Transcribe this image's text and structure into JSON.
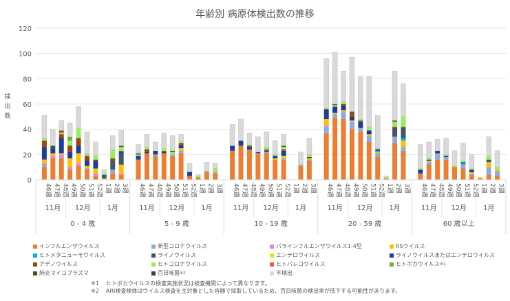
{
  "chart_data": {
    "type": "bar",
    "stacked": true,
    "title": "年齢別 病原体検出数の推移",
    "ylabel": "検出数",
    "ylim": [
      0,
      120
    ],
    "yticks": [
      0,
      20,
      40,
      60,
      80,
      100,
      120
    ],
    "grid": true,
    "legend_position": "bottom",
    "weeks": [
      "46週",
      "47週",
      "48週",
      "49週",
      "50週",
      "51週",
      "52週",
      "1週",
      "2週",
      "3週"
    ],
    "months": [
      {
        "label": "11月",
        "span": 3
      },
      {
        "label": "12月",
        "span": 4
      },
      {
        "label": "1月",
        "span": 3
      }
    ],
    "series": [
      {
        "name": "インフルエンザウイルス",
        "color": "#ED7D31"
      },
      {
        "name": "新型コロナウイルス",
        "color": "#8FAADC"
      },
      {
        "name": "パラインフルエンザウイルス1-4型",
        "color": "#F47FCF"
      },
      {
        "name": "RSウイルス",
        "color": "#FFC000"
      },
      {
        "name": "ヒトメタニューモウイルス",
        "color": "#00B0F0"
      },
      {
        "name": "ライノウイルス",
        "color": "#44546A"
      },
      {
        "name": "エンテロウイルス",
        "color": "#E6E600"
      },
      {
        "name": "ライノウイルスまたはエンテロウイルス",
        "color": "#1F3C9C"
      },
      {
        "name": "アデノウイルス",
        "color": "#9E480E"
      },
      {
        "name": "ヒトコロナウイルス",
        "color": "#92F060"
      },
      {
        "name": "ヒトパレコウイルス",
        "color": "#FF5050"
      },
      {
        "name": "ヒトボカウイルス",
        "color": "#70AD47",
        "note": "※1"
      },
      {
        "name": "肺炎マイコプラズマ",
        "color": "#375623"
      },
      {
        "name": "百日咳菌",
        "color": "#404040",
        "note": "※2"
      },
      {
        "name": "不検出",
        "color": "#D9D9D9"
      }
    ],
    "groups": [
      {
        "label": "0 - 4 歳",
        "values": [
          [
            10,
            2,
            1,
            3,
            0,
            0,
            0,
            10,
            5,
            2,
            0,
            0,
            0,
            0,
            18
          ],
          [
            17,
            0,
            2,
            2,
            0,
            0,
            0,
            4,
            0,
            0,
            0,
            0,
            2,
            0,
            13
          ],
          [
            17,
            1,
            2,
            1,
            0,
            0,
            0,
            12,
            3,
            1,
            1,
            0,
            1,
            0,
            8
          ],
          [
            8,
            1,
            1,
            7,
            0,
            0,
            0,
            5,
            5,
            4,
            0,
            3,
            0,
            0,
            11
          ],
          [
            11,
            0,
            2,
            8,
            0,
            0,
            0,
            6,
            6,
            8,
            0,
            0,
            0,
            0,
            17
          ],
          [
            8,
            1,
            0,
            2,
            0,
            0,
            0,
            4,
            4,
            2,
            0,
            0,
            0,
            0,
            17
          ],
          [
            3,
            0,
            2,
            4,
            0,
            0,
            0,
            6,
            1,
            3,
            0,
            0,
            0,
            0,
            11
          ],
          [
            0,
            0,
            0,
            1,
            0,
            3,
            0,
            0,
            0,
            1,
            0,
            0,
            0,
            0,
            3
          ],
          [
            5,
            3,
            0,
            0,
            0,
            7,
            0,
            0,
            2,
            7,
            0,
            0,
            0,
            0,
            11
          ],
          [
            4,
            0,
            1,
            7,
            0,
            9,
            0,
            1,
            1,
            3,
            0,
            0,
            1,
            0,
            12
          ]
        ]
      },
      {
        "label": "5 - 9 歳",
        "values": [
          [
            16,
            0,
            0,
            0,
            0,
            0,
            0,
            3,
            0,
            1,
            0,
            0,
            1,
            0,
            7
          ],
          [
            21,
            0,
            0,
            0,
            0,
            0,
            0,
            1,
            2,
            2,
            0,
            0,
            0,
            0,
            10
          ],
          [
            19,
            1,
            0,
            0,
            0,
            0,
            0,
            3,
            0,
            0,
            0,
            0,
            0,
            0,
            7
          ],
          [
            21,
            0,
            0,
            0,
            0,
            0,
            0,
            1,
            1,
            2,
            0,
            0,
            0,
            0,
            12
          ],
          [
            19,
            1,
            0,
            0,
            0,
            0,
            0,
            0,
            0,
            2,
            0,
            0,
            1,
            0,
            12
          ],
          [
            21,
            2,
            0,
            2,
            0,
            0,
            0,
            2,
            2,
            1,
            0,
            0,
            0,
            0,
            6
          ],
          [
            3,
            0,
            0,
            0,
            0,
            0,
            0,
            3,
            0,
            1,
            0,
            0,
            0,
            0,
            6
          ],
          [
            2,
            0,
            0,
            0,
            0,
            0,
            0,
            0,
            0,
            1,
            0,
            0,
            0,
            0,
            1
          ],
          [
            6,
            1,
            0,
            0,
            0,
            0,
            0,
            0,
            0,
            0,
            0,
            0,
            0,
            0,
            7
          ],
          [
            5,
            1,
            0,
            1,
            0,
            0,
            0,
            0,
            0,
            2,
            0,
            0,
            0,
            0,
            4
          ]
        ]
      },
      {
        "label": "10 - 19 歳",
        "values": [
          [
            23,
            0,
            0,
            0,
            0,
            0,
            0,
            4,
            0,
            0,
            0,
            0,
            0,
            0,
            17
          ],
          [
            27,
            0,
            0,
            0,
            0,
            0,
            0,
            4,
            0,
            0,
            0,
            0,
            0,
            0,
            17
          ],
          [
            24,
            0,
            0,
            0,
            0,
            0,
            0,
            2,
            1,
            1,
            0,
            0,
            0,
            0,
            9
          ],
          [
            20,
            0,
            1,
            0,
            0,
            0,
            0,
            0,
            0,
            0,
            0,
            0,
            1,
            0,
            12
          ],
          [
            21,
            1,
            0,
            0,
            0,
            0,
            0,
            1,
            1,
            2,
            0,
            0,
            0,
            0,
            12
          ],
          [
            16,
            0,
            0,
            1,
            0,
            0,
            0,
            2,
            0,
            1,
            0,
            0,
            0,
            0,
            11
          ],
          [
            16,
            1,
            0,
            2,
            0,
            0,
            0,
            4,
            1,
            2,
            0,
            0,
            1,
            0,
            9
          ],
          [
            0,
            0,
            0,
            0,
            0,
            0,
            0,
            0,
            0,
            0,
            0,
            0,
            0,
            0,
            0
          ],
          [
            11,
            1,
            0,
            0,
            0,
            0,
            0,
            0,
            0,
            0,
            0,
            0,
            0,
            0,
            10
          ],
          [
            15,
            1,
            0,
            1,
            0,
            1,
            0,
            0,
            0,
            2,
            0,
            0,
            0,
            0,
            13
          ]
        ]
      },
      {
        "label": "20 - 59 歳",
        "values": [
          [
            37,
            5,
            1,
            5,
            0,
            0,
            0,
            8,
            0,
            1,
            0,
            0,
            0,
            0,
            39
          ],
          [
            49,
            3,
            0,
            1,
            0,
            0,
            0,
            5,
            0,
            1,
            0,
            0,
            0,
            1,
            41
          ],
          [
            48,
            6,
            0,
            1,
            0,
            0,
            0,
            4,
            1,
            2,
            0,
            0,
            0,
            0,
            24
          ],
          [
            40,
            6,
            0,
            1,
            0,
            0,
            0,
            3,
            3,
            0,
            0,
            0,
            1,
            0,
            43
          ],
          [
            38,
            3,
            0,
            0,
            0,
            0,
            0,
            5,
            1,
            1,
            0,
            0,
            0,
            0,
            34
          ],
          [
            30,
            5,
            0,
            1,
            0,
            0,
            0,
            3,
            0,
            3,
            0,
            0,
            0,
            0,
            40
          ],
          [
            18,
            3,
            0,
            1,
            1,
            0,
            0,
            1,
            0,
            1,
            0,
            0,
            0,
            0,
            26
          ],
          [
            0,
            1,
            0,
            1,
            0,
            0,
            0,
            0,
            0,
            0,
            0,
            0,
            0,
            0,
            1
          ],
          [
            29,
            5,
            0,
            0,
            0,
            7,
            0,
            0,
            1,
            4,
            0,
            0,
            1,
            0,
            39
          ],
          [
            23,
            3,
            0,
            5,
            2,
            8,
            0,
            0,
            1,
            8,
            0,
            0,
            0,
            0,
            26
          ]
        ]
      },
      {
        "label": "60 歳以上",
        "values": [
          [
            5,
            0,
            0,
            0,
            0,
            0,
            0,
            3,
            0,
            1,
            0,
            0,
            0,
            0,
            19
          ],
          [
            12,
            2,
            0,
            1,
            0,
            0,
            0,
            1,
            0,
            1,
            0,
            0,
            0,
            0,
            13
          ],
          [
            16,
            5,
            0,
            0,
            0,
            0,
            0,
            2,
            0,
            0,
            0,
            0,
            0,
            0,
            9
          ],
          [
            16,
            2,
            0,
            0,
            0,
            0,
            0,
            1,
            0,
            1,
            0,
            0,
            0,
            0,
            13
          ],
          [
            10,
            0,
            0,
            1,
            0,
            0,
            0,
            0,
            0,
            0,
            0,
            0,
            0,
            0,
            12
          ],
          [
            9,
            3,
            0,
            0,
            1,
            0,
            0,
            1,
            0,
            1,
            0,
            0,
            0,
            0,
            14
          ],
          [
            4,
            1,
            0,
            1,
            0,
            0,
            0,
            2,
            0,
            1,
            0,
            0,
            0,
            0,
            11
          ],
          [
            1,
            0,
            0,
            1,
            0,
            0,
            0,
            0,
            0,
            0,
            0,
            0,
            0,
            0,
            0
          ],
          [
            4,
            6,
            0,
            4,
            0,
            2,
            0,
            0,
            0,
            3,
            0,
            0,
            0,
            0,
            15
          ],
          [
            3,
            4,
            0,
            1,
            0,
            0,
            0,
            0,
            0,
            2,
            0,
            0,
            0,
            0,
            13
          ]
        ]
      }
    ]
  },
  "notes": [
    {
      "mark": "※1",
      "text": "ヒトボカウイルスの検査実施状況は検査機関によって異なります。"
    },
    {
      "mark": "※2",
      "text": "ARI検査検体はウイルス検査を主対象とした容器で採取しているため、百日咳菌の検出率が低下する可能性があります。"
    }
  ]
}
